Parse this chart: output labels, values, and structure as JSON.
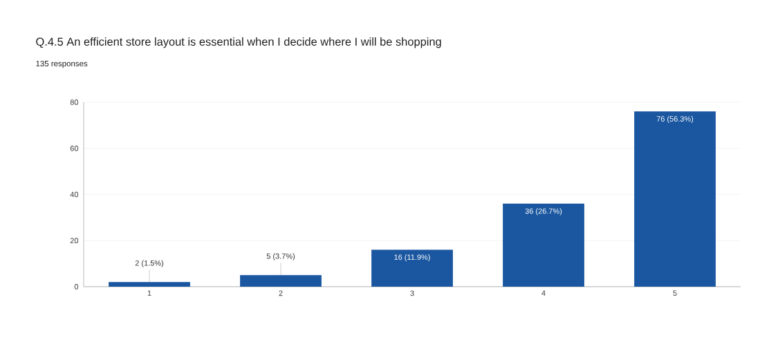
{
  "chart_data": {
    "type": "bar",
    "title": "Q.4.5 An efficient store layout is essential when I decide where I will be shopping",
    "subtitle": "135 responses",
    "categories": [
      "1",
      "2",
      "3",
      "4",
      "5"
    ],
    "values": [
      2,
      5,
      16,
      36,
      76
    ],
    "value_labels": [
      "2 (1.5%)",
      "5 (3.7%)",
      "16 (11.9%)",
      "36 (26.7%)",
      "76 (56.3%)"
    ],
    "color": "#1a57a0",
    "ylim": [
      0,
      80
    ],
    "yticks": [
      0,
      20,
      40,
      60,
      80
    ],
    "grid": "y"
  }
}
